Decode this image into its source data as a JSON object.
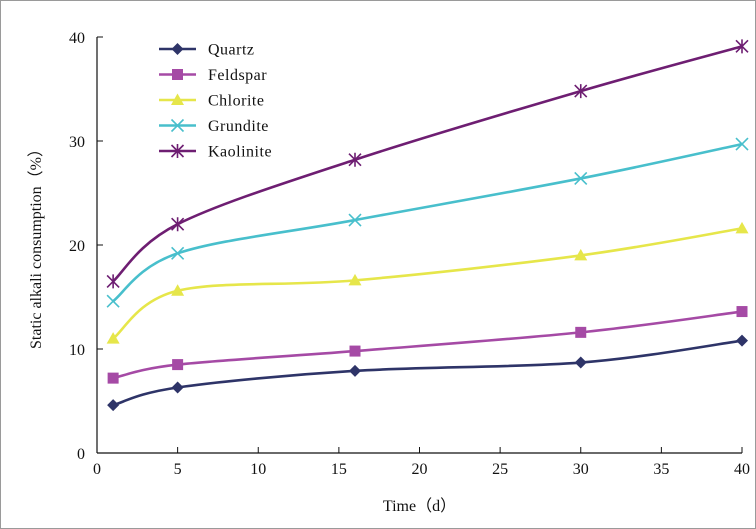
{
  "chart_data": {
    "type": "line",
    "xlabel": "Time（d）",
    "ylabel": "Static alkali consumption（%）",
    "xlim": [
      0,
      40
    ],
    "ylim": [
      0,
      40
    ],
    "xticks": [
      0,
      5,
      10,
      15,
      20,
      25,
      30,
      35,
      40
    ],
    "yticks": [
      0,
      10,
      20,
      30,
      40
    ],
    "legend_position": "top-left",
    "grid": false,
    "series": [
      {
        "name": "Quartz",
        "color": "#2e3468",
        "marker": "diamond",
        "x": [
          1,
          5,
          16,
          30,
          40
        ],
        "y": [
          4.6,
          6.3,
          7.9,
          8.7,
          10.8
        ]
      },
      {
        "name": "Feldspar",
        "color": "#a54aa5",
        "marker": "square",
        "x": [
          1,
          5,
          16,
          30,
          40
        ],
        "y": [
          7.2,
          8.5,
          9.8,
          11.6,
          13.6
        ]
      },
      {
        "name": "Chlorite",
        "color": "#e6e64a",
        "marker": "triangle",
        "x": [
          1,
          5,
          16,
          30,
          40
        ],
        "y": [
          11.0,
          15.6,
          16.6,
          19.0,
          21.6
        ]
      },
      {
        "name": "Grundite",
        "color": "#48bfcc",
        "marker": "x",
        "x": [
          1,
          5,
          16,
          30,
          40
        ],
        "y": [
          14.6,
          19.2,
          22.4,
          26.4,
          29.7
        ]
      },
      {
        "name": "Kaolinite",
        "color": "#6e1e72",
        "marker": "asterisk",
        "x": [
          1,
          5,
          16,
          30,
          40
        ],
        "y": [
          16.5,
          22.0,
          28.2,
          34.8,
          39.1
        ]
      }
    ]
  }
}
